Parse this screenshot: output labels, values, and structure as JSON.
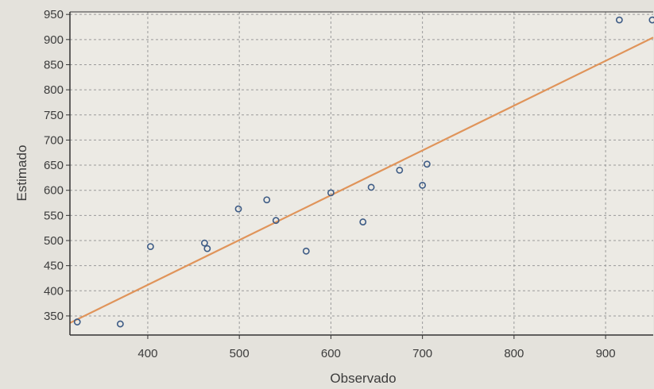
{
  "chart_data": {
    "type": "scatter",
    "title": "",
    "xlabel": "Observado",
    "ylabel": "Estimado",
    "xlim": [
      315,
      952
    ],
    "ylim": [
      312,
      955
    ],
    "x_ticks": [
      400,
      500,
      600,
      700,
      800,
      900
    ],
    "y_ticks": [
      350,
      400,
      450,
      500,
      550,
      600,
      650,
      700,
      750,
      800,
      850,
      900,
      950
    ],
    "grid": true,
    "series": [
      {
        "points": [
          {
            "x": 323,
            "y": 338
          },
          {
            "x": 370,
            "y": 334
          },
          {
            "x": 403,
            "y": 488
          },
          {
            "x": 462,
            "y": 495
          },
          {
            "x": 465,
            "y": 484
          },
          {
            "x": 499,
            "y": 563
          },
          {
            "x": 530,
            "y": 581
          },
          {
            "x": 540,
            "y": 540
          },
          {
            "x": 573,
            "y": 479
          },
          {
            "x": 600,
            "y": 595
          },
          {
            "x": 635,
            "y": 537
          },
          {
            "x": 644,
            "y": 606
          },
          {
            "x": 675,
            "y": 640
          },
          {
            "x": 700,
            "y": 610
          },
          {
            "x": 705,
            "y": 652
          },
          {
            "x": 915,
            "y": 939
          },
          {
            "x": 951,
            "y": 939
          }
        ]
      }
    ],
    "fit_line": {
      "x": [
        315,
        952
      ],
      "y": [
        336,
        904
      ]
    },
    "colors": {
      "marker": "#3e5c86",
      "fit_line": "#e0945a",
      "grid": "#9a9a9a",
      "axis": "#333333",
      "plot_background": "#eceae4"
    }
  }
}
